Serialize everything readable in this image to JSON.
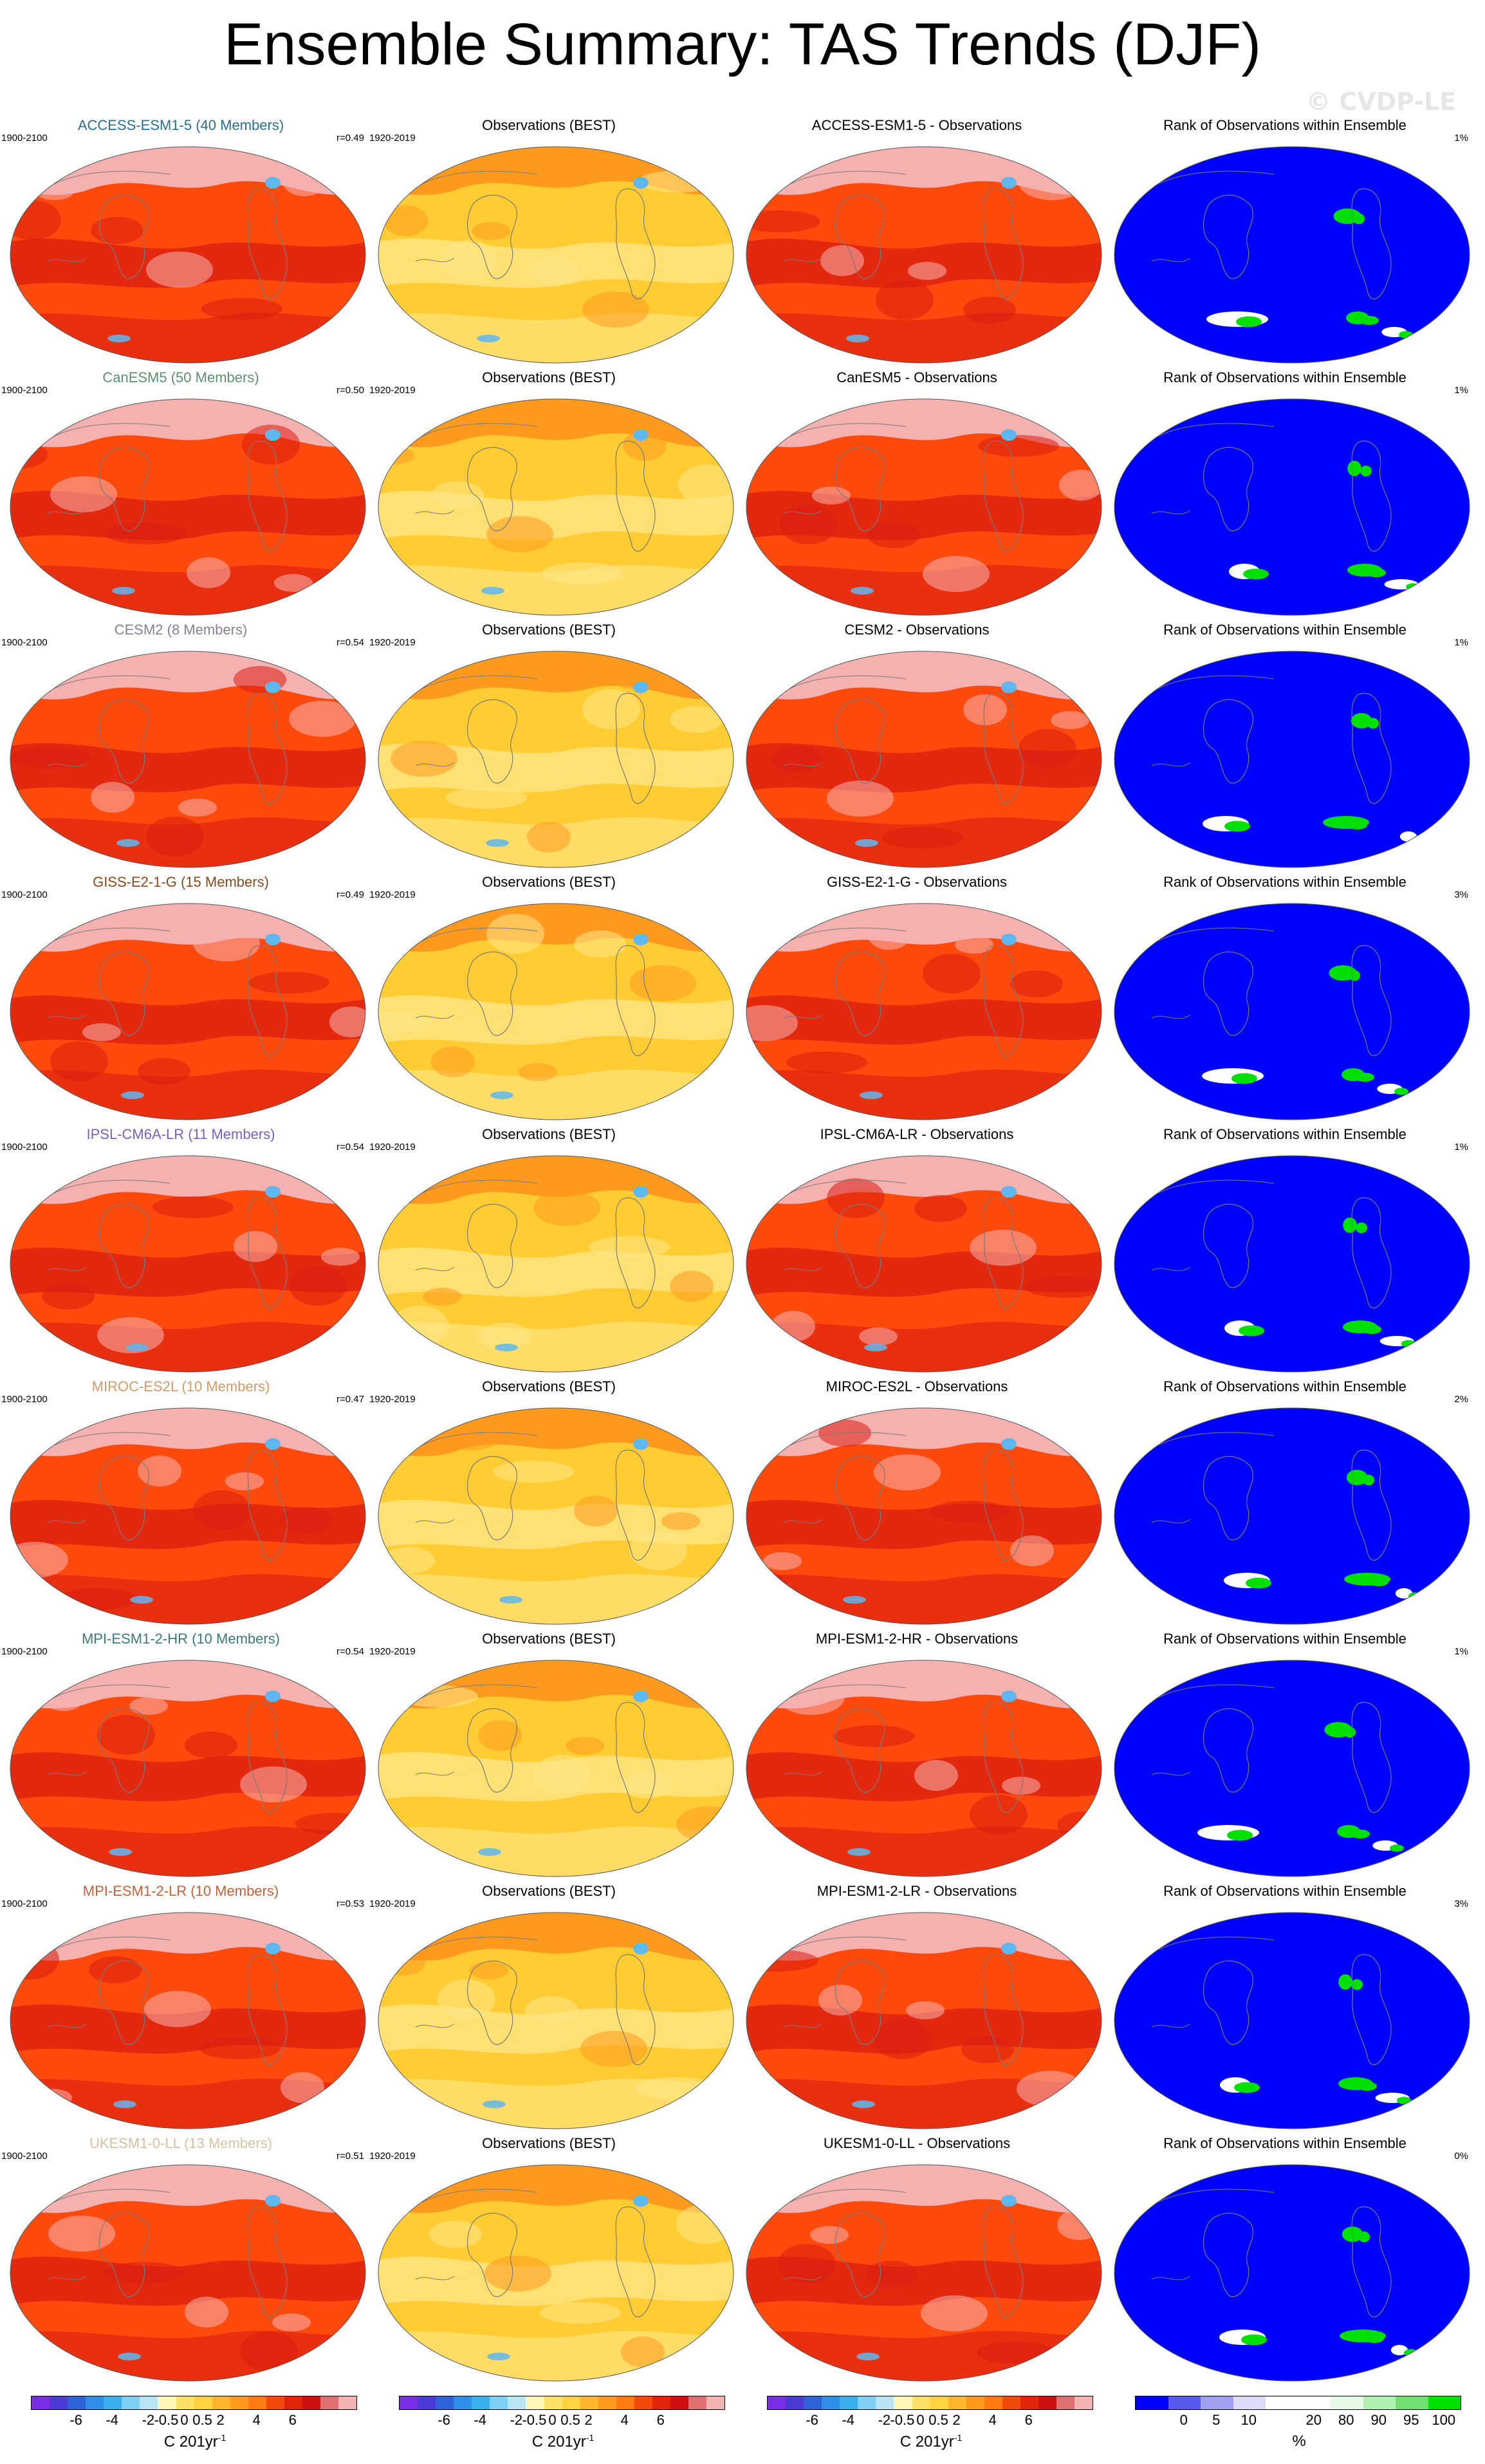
{
  "title": "Ensemble Summary: TAS Trends (DJF)",
  "credit": "© CVDP-LE",
  "rows": [
    {
      "model_title": "ACCESS-ESM1-5 (40 Members)",
      "title_color": "#2a6f8f",
      "model_period": "1900-2100",
      "corr": "r=0.49",
      "obs_title": "Observations (BEST)",
      "obs_period": "1920-2019",
      "diff_title": "ACCESS-ESM1-5 - Observations",
      "rank_title": "Rank of Observations within Ensemble",
      "rank_pct": "1%"
    },
    {
      "model_title": "CanESM5 (50 Members)",
      "title_color": "#5f8f6f",
      "model_period": "1900-2100",
      "corr": "r=0.50",
      "obs_title": "Observations (BEST)",
      "obs_period": "1920-2019",
      "diff_title": "CanESM5 - Observations",
      "rank_title": "Rank of Observations within Ensemble",
      "rank_pct": "1%"
    },
    {
      "model_title": "CESM2 (8 Members)",
      "title_color": "#8a7f8f",
      "model_period": "1900-2100",
      "corr": "r=0.54",
      "obs_title": "Observations (BEST)",
      "obs_period": "1920-2019",
      "diff_title": "CESM2 - Observations",
      "rank_title": "Rank of Observations within Ensemble",
      "rank_pct": "1%"
    },
    {
      "model_title": "GISS-E2-1-G (15 Members)",
      "title_color": "#8a4a1a",
      "model_period": "1900-2100",
      "corr": "r=0.49",
      "obs_title": "Observations (BEST)",
      "obs_period": "1920-2019",
      "diff_title": "GISS-E2-1-G - Observations",
      "rank_title": "Rank of Observations within Ensemble",
      "rank_pct": "3%"
    },
    {
      "model_title": "IPSL-CM6A-LR (11 Members)",
      "title_color": "#7a5fc0",
      "model_period": "1900-2100",
      "corr": "r=0.54",
      "obs_title": "Observations (BEST)",
      "obs_period": "1920-2019",
      "diff_title": "IPSL-CM6A-LR - Observations",
      "rank_title": "Rank of Observations within Ensemble",
      "rank_pct": "1%"
    },
    {
      "model_title": "MIROC-ES2L (10 Members)",
      "title_color": "#d29a6a",
      "model_period": "1900-2100",
      "corr": "r=0.47",
      "obs_title": "Observations (BEST)",
      "obs_period": "1920-2019",
      "diff_title": "MIROC-ES2L - Observations",
      "rank_title": "Rank of Observations within Ensemble",
      "rank_pct": "2%"
    },
    {
      "model_title": "MPI-ESM1-2-HR (10 Members)",
      "title_color": "#3a7a7a",
      "model_period": "1900-2100",
      "corr": "r=0.54",
      "obs_title": "Observations (BEST)",
      "obs_period": "1920-2019",
      "diff_title": "MPI-ESM1-2-HR - Observations",
      "rank_title": "Rank of Observations within Ensemble",
      "rank_pct": "1%"
    },
    {
      "model_title": "MPI-ESM1-2-LR (10 Members)",
      "title_color": "#c4603a",
      "model_period": "1900-2100",
      "corr": "r=0.53",
      "obs_title": "Observations (BEST)",
      "obs_period": "1920-2019",
      "diff_title": "MPI-ESM1-2-LR - Observations",
      "rank_title": "Rank of Observations within Ensemble",
      "rank_pct": "3%"
    },
    {
      "model_title": "UKESM1-0-LL (13 Members)",
      "title_color": "#d4c2a0",
      "model_period": "1900-2100",
      "corr": "r=0.51",
      "obs_title": "Observations (BEST)",
      "obs_period": "1920-2019",
      "diff_title": "UKESM1-0-LL - Observations",
      "rank_title": "Rank of Observations within Ensemble",
      "rank_pct": "0%"
    }
  ],
  "colorbars": {
    "trend": {
      "colors": [
        "#7a2ee6",
        "#4a3ad6",
        "#2f63d9",
        "#2e8fe8",
        "#3cb0ee",
        "#7fd0f2",
        "#b9e6f5",
        "#fff7b8",
        "#ffe066",
        "#ffd23f",
        "#ffb52e",
        "#ff9a1f",
        "#ff7a10",
        "#f24a0a",
        "#e0250a",
        "#cc1010",
        "#e07070",
        "#f4b3b3"
      ],
      "ticks": [
        "-6",
        "-4",
        "-2",
        "-0.5",
        "0",
        "0.5",
        "2",
        "4",
        "6"
      ],
      "unit_main": "C 201yr",
      "unit_sup": "-1"
    },
    "rank": {
      "colors": [
        "#0000ff",
        "#5a5af0",
        "#a0a0f0",
        "#dcdcf8",
        "#ffffff",
        "#ffffff",
        "#e6fbe6",
        "#b0f0b0",
        "#70e070",
        "#00e000"
      ],
      "ticks": [
        "0",
        "5",
        "10",
        "20",
        "80",
        "90",
        "95",
        "100"
      ],
      "unit": "%"
    }
  },
  "palette": {
    "model_base": "#ff4a0d",
    "model_dark": "#d81e10",
    "model_high": "#f5b0b0",
    "obs_base": "#ffcc33",
    "obs_light": "#ffe788",
    "obs_warm": "#ff9a1f",
    "cold_blue": "#5fb7ef",
    "rank_base": "#0000ff",
    "rank_green": "#00e000",
    "rank_white": "#ffffff"
  }
}
